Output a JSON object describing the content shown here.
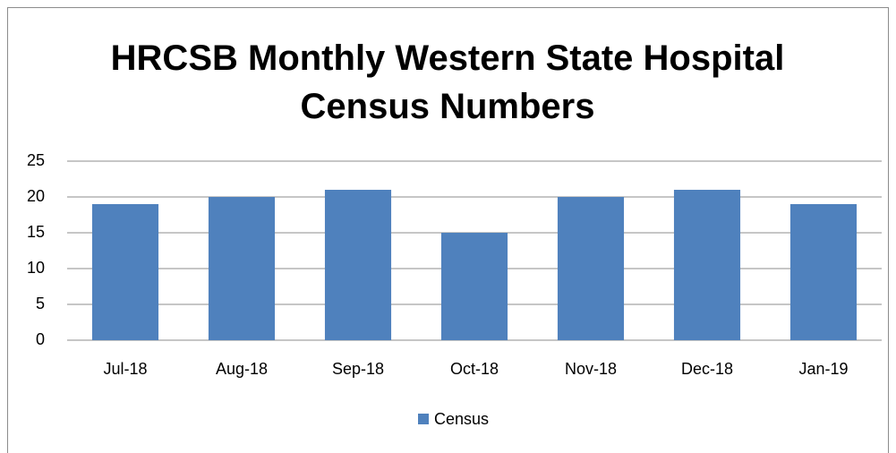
{
  "chart_data": {
    "type": "bar",
    "title": "HRCSB Monthly Western State Hospital Census Numbers",
    "categories": [
      "Jul-18",
      "Aug-18",
      "Sep-18",
      "Oct-18",
      "Nov-18",
      "Dec-18",
      "Jan-19"
    ],
    "series": [
      {
        "name": "Census",
        "color": "#4f81bd",
        "values": [
          19,
          20,
          21,
          15,
          20,
          21,
          19
        ]
      }
    ],
    "ylim": [
      0,
      25
    ],
    "yticks": [
      0,
      5,
      10,
      15,
      20,
      25
    ],
    "grid": true,
    "legend": "bottom"
  }
}
